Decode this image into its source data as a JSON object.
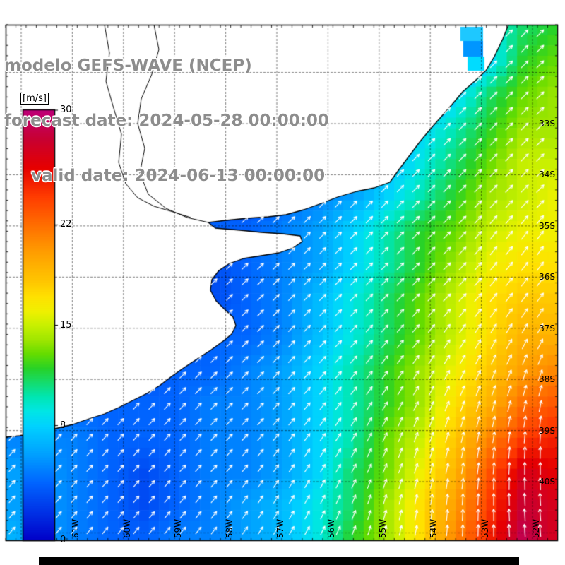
{
  "header": {
    "model_line": "modelo GEFS-WAVE (NCEP)",
    "forecast_line": "forecast date: 2024-05-28 00:00:00",
    "valid_line": "valid date: 2024-06-13 00:00:00"
  },
  "colorbar": {
    "unit_label": "[m/s]",
    "tick_values": [
      30,
      22,
      15,
      8,
      0
    ],
    "min": 0,
    "max": 30,
    "stops": [
      [
        0,
        "#0000C8"
      ],
      [
        2,
        "#0032E6"
      ],
      [
        4,
        "#0064FF"
      ],
      [
        6,
        "#00A0FF"
      ],
      [
        8,
        "#00D2FF"
      ],
      [
        9,
        "#00E6E6"
      ],
      [
        10,
        "#00E6B4"
      ],
      [
        11,
        "#14DC6E"
      ],
      [
        12,
        "#28D228"
      ],
      [
        13,
        "#64DC00"
      ],
      [
        14,
        "#A0E600"
      ],
      [
        15,
        "#C8F000"
      ],
      [
        16,
        "#F0F000"
      ],
      [
        17,
        "#FFE100"
      ],
      [
        18,
        "#FFC800"
      ],
      [
        20,
        "#FFA000"
      ],
      [
        22,
        "#FF6E00"
      ],
      [
        24,
        "#FF3C00"
      ],
      [
        26,
        "#E60000"
      ],
      [
        28,
        "#C80032"
      ],
      [
        30,
        "#BE0078"
      ]
    ]
  },
  "map": {
    "lat_labels": [
      "33S",
      "34S",
      "35S",
      "36S",
      "37S",
      "38S",
      "39S",
      "40S"
    ],
    "lon_labels": [
      "61W",
      "60W",
      "59W",
      "58W",
      "57W",
      "56W",
      "55W",
      "54W",
      "53W",
      "52W"
    ]
  },
  "chart_data": {
    "type": "heatmap",
    "title": "modelo GEFS-WAVE (NCEP)",
    "subtitle": "forecast date: 2024-05-28 00:00:00 / valid date: 2024-06-13 00:00:00",
    "units": "m/s",
    "value_range": [
      0,
      30
    ],
    "legend_ticks": [
      0,
      8,
      15,
      22,
      30
    ],
    "x_tick_labels": [
      "61W",
      "60W",
      "59W",
      "58W",
      "57W",
      "56W",
      "55W",
      "54W",
      "53W",
      "52W"
    ],
    "y_tick_labels": [
      "33S",
      "34S",
      "35S",
      "36S",
      "37S",
      "38S",
      "39S",
      "40S"
    ],
    "grid_cols": 17,
    "grid_rows": 16,
    "speed": [
      [
        5,
        5,
        5,
        5,
        5,
        5,
        5,
        5,
        5,
        5,
        5,
        5,
        5,
        5,
        9,
        11,
        12
      ],
      [
        5,
        5,
        5,
        5,
        5,
        5,
        5,
        5,
        5,
        5,
        5,
        5,
        5,
        5,
        8,
        12,
        13
      ],
      [
        5,
        5,
        5,
        5,
        5,
        5,
        5,
        5,
        5,
        5,
        5,
        5,
        5,
        8,
        11,
        13,
        14
      ],
      [
        4,
        4,
        4,
        4,
        4,
        4,
        4,
        4,
        4,
        4,
        4,
        4,
        8,
        10,
        12,
        14,
        14
      ],
      [
        4,
        4,
        4,
        4,
        4,
        4,
        4,
        4,
        4,
        4,
        4,
        7,
        9,
        11,
        13,
        15,
        15
      ],
      [
        3,
        3,
        3,
        3,
        3,
        3,
        3,
        3,
        4,
        5,
        6,
        8,
        10,
        12,
        14,
        15,
        16
      ],
      [
        3,
        3,
        3,
        3,
        3,
        3,
        4,
        4,
        5,
        6,
        8,
        10,
        12,
        13,
        15,
        16,
        16
      ],
      [
        3,
        3,
        3,
        3,
        3,
        3,
        3,
        4,
        5,
        6,
        8,
        10,
        12,
        14,
        16,
        17,
        17
      ],
      [
        3,
        3,
        3,
        3,
        3,
        3,
        3,
        4,
        5,
        7,
        9,
        11,
        13,
        15,
        17,
        18,
        18
      ],
      [
        3,
        3,
        3,
        3,
        3,
        3,
        4,
        4,
        5,
        7,
        9,
        11,
        13,
        15,
        17,
        19,
        19
      ],
      [
        3,
        3,
        3,
        3,
        3,
        4,
        4,
        5,
        6,
        8,
        10,
        12,
        14,
        16,
        18,
        20,
        21
      ],
      [
        4,
        4,
        4,
        4,
        4,
        4,
        5,
        5,
        6,
        8,
        10,
        12,
        14,
        17,
        19,
        22,
        23
      ],
      [
        5,
        5,
        5,
        4,
        4,
        4,
        5,
        5,
        6,
        8,
        10,
        13,
        15,
        18,
        21,
        24,
        25
      ],
      [
        6,
        6,
        5,
        4,
        3,
        4,
        5,
        5,
        6,
        8,
        11,
        13,
        16,
        19,
        23,
        27,
        26
      ],
      [
        6,
        6,
        5,
        4,
        3,
        4,
        5,
        6,
        7,
        9,
        11,
        14,
        17,
        20,
        24,
        28,
        27
      ],
      [
        7,
        6,
        5,
        4,
        4,
        5,
        5,
        6,
        7,
        9,
        12,
        14,
        17,
        21,
        25,
        29,
        27
      ]
    ],
    "direction_deg_ccw_from_east": [
      [
        45,
        45,
        45,
        45,
        45,
        45,
        45,
        45,
        45,
        45,
        45,
        45,
        45,
        45,
        45,
        45,
        45
      ],
      [
        45,
        45,
        45,
        45,
        45,
        45,
        45,
        45,
        45,
        45,
        45,
        45,
        45,
        45,
        45,
        45,
        45
      ],
      [
        45,
        45,
        45,
        45,
        45,
        45,
        45,
        45,
        45,
        45,
        45,
        45,
        45,
        45,
        45,
        45,
        45
      ],
      [
        45,
        45,
        45,
        45,
        45,
        45,
        45,
        45,
        45,
        45,
        45,
        45,
        45,
        45,
        45,
        45,
        45
      ],
      [
        45,
        45,
        45,
        45,
        45,
        45,
        45,
        45,
        45,
        45,
        45,
        45,
        45,
        45,
        45,
        45,
        45
      ],
      [
        45,
        45,
        45,
        45,
        45,
        45,
        45,
        45,
        45,
        45,
        45,
        45,
        45,
        45,
        45,
        45,
        45
      ],
      [
        45,
        45,
        45,
        45,
        45,
        45,
        45,
        45,
        45,
        45,
        45,
        45,
        45,
        45,
        50,
        52,
        55
      ],
      [
        45,
        45,
        45,
        45,
        45,
        45,
        45,
        45,
        45,
        45,
        45,
        45,
        45,
        45,
        50,
        52,
        55
      ],
      [
        45,
        45,
        45,
        45,
        45,
        45,
        45,
        45,
        45,
        45,
        45,
        45,
        45,
        45,
        50,
        52,
        55
      ],
      [
        45,
        45,
        45,
        45,
        45,
        45,
        45,
        45,
        45,
        45,
        45,
        48,
        50,
        55,
        58,
        60,
        62
      ],
      [
        45,
        45,
        45,
        45,
        45,
        45,
        45,
        45,
        45,
        45,
        48,
        52,
        56,
        60,
        64,
        68,
        70
      ],
      [
        46,
        46,
        46,
        46,
        46,
        46,
        46,
        46,
        46,
        50,
        54,
        58,
        62,
        68,
        72,
        76,
        80
      ],
      [
        48,
        48,
        48,
        48,
        48,
        48,
        48,
        48,
        50,
        54,
        58,
        64,
        70,
        75,
        80,
        85,
        88
      ],
      [
        48,
        48,
        48,
        48,
        48,
        48,
        48,
        52,
        55,
        58,
        62,
        68,
        74,
        80,
        85,
        90,
        92
      ],
      [
        50,
        50,
        50,
        50,
        50,
        50,
        52,
        55,
        58,
        62,
        68,
        74,
        80,
        86,
        90,
        94,
        95
      ],
      [
        50,
        50,
        50,
        50,
        50,
        50,
        52,
        55,
        58,
        62,
        68,
        74,
        80,
        86,
        90,
        94,
        95
      ]
    ],
    "arrow_glyph": "white direction arrows over water",
    "land_color": "#FFFFFF",
    "grid_on": true
  }
}
